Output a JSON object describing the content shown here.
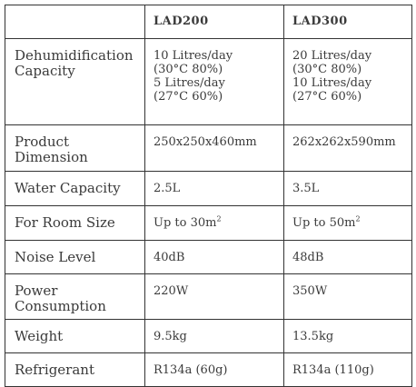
{
  "header": {
    "blank": "",
    "model_a": "LAD200",
    "model_b": "LAD300"
  },
  "rows": [
    {
      "label_lines": [
        "Dehumidification",
        "Capacity"
      ],
      "a_lines": [
        "10 Litres/day",
        "(30°C 80%)",
        "5 Litres/day",
        "(27°C 60%)"
      ],
      "b_lines": [
        "20 Litres/day",
        "(30°C 80%)",
        "10 Litres/day",
        "(27°C 60%)"
      ]
    },
    {
      "label_lines": [
        "Product",
        "Dimension"
      ],
      "a": "250x250x460mm",
      "b": "262x262x590mm"
    },
    {
      "label": "Water Capacity",
      "a": "2.5L",
      "b": "3.5L"
    },
    {
      "label": "For Room Size",
      "a": "Up to 30m",
      "a_sup": "2",
      "b": "Up to 50m",
      "b_sup": "2"
    },
    {
      "label": "Noise Level",
      "a": "40dB",
      "b": "48dB"
    },
    {
      "label_lines": [
        "Power",
        "Consumption"
      ],
      "a": "220W",
      "b": "350W"
    },
    {
      "label": "Weight",
      "a": "9.5kg",
      "b": "13.5kg"
    },
    {
      "label": "Refrigerant",
      "a": "R134a (60g)",
      "b": "R134a (110g)"
    }
  ]
}
